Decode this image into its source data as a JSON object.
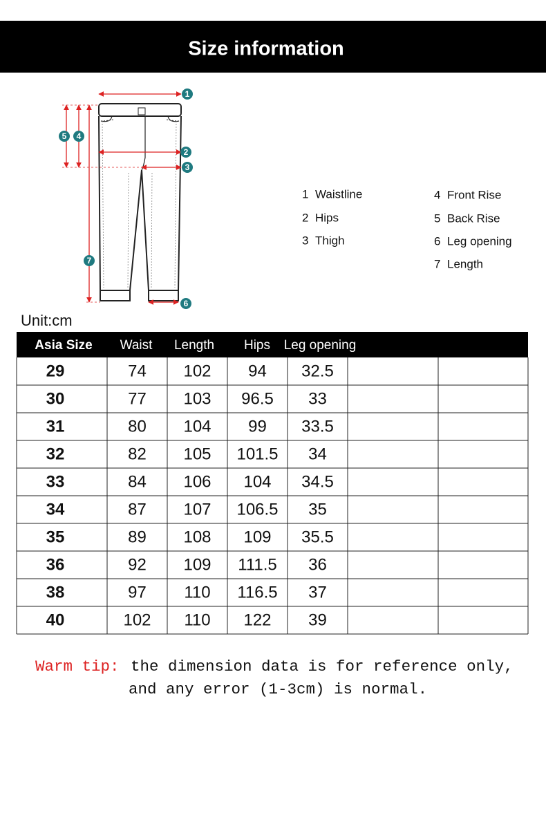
{
  "header": {
    "title": "Size information"
  },
  "diagram": {
    "markers": [
      "1",
      "2",
      "3",
      "4",
      "5",
      "6",
      "7"
    ]
  },
  "legend": [
    {
      "number": "1",
      "label": "Waistline"
    },
    {
      "number": "2",
      "label": "Hips"
    },
    {
      "number": "3",
      "label": "Thigh"
    },
    {
      "number": "4",
      "label": "Front Rise"
    },
    {
      "number": "5",
      "label": "Back Rise"
    },
    {
      "number": "6",
      "label": "Leg opening"
    },
    {
      "number": "7",
      "label": "Length"
    }
  ],
  "table": {
    "unit": "Unit:cm",
    "columns": [
      "Asia Size",
      "Waist",
      "Length",
      "Hips",
      "Leg opening"
    ],
    "rows": [
      [
        29,
        74,
        102,
        94,
        32.5
      ],
      [
        30,
        77,
        103,
        96.5,
        33
      ],
      [
        31,
        80,
        104,
        99,
        33.5
      ],
      [
        32,
        82,
        105,
        101.5,
        34
      ],
      [
        33,
        84,
        106,
        104,
        34.5
      ],
      [
        34,
        87,
        107,
        106.5,
        35
      ],
      [
        35,
        89,
        108,
        109,
        35.5
      ],
      [
        36,
        92,
        109,
        111.5,
        36
      ],
      [
        38,
        97,
        110,
        116.5,
        37
      ],
      [
        40,
        102,
        110,
        122,
        39
      ]
    ]
  },
  "tip": {
    "label": "Warm tip:",
    "lines": [
      "the dimension data is for reference only,",
      "and any error (1-3cm) is normal."
    ]
  }
}
